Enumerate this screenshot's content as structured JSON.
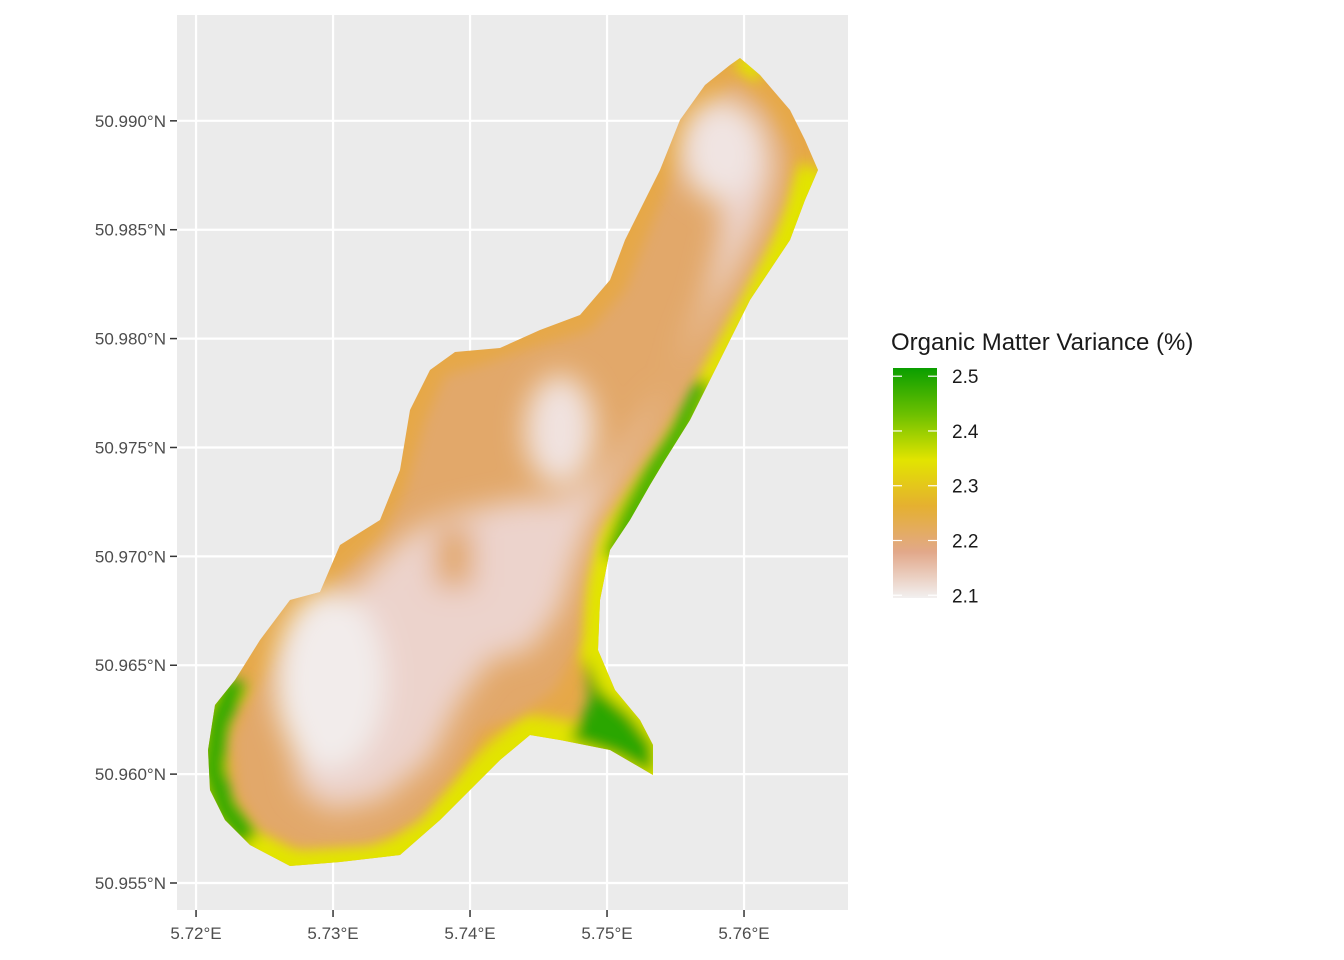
{
  "map": {
    "xlim": [
      5.71861,
      5.76759
    ],
    "ylim": [
      50.95376,
      50.99486
    ],
    "xticks": [
      {
        "value": 5.72,
        "label": "5.72°E"
      },
      {
        "value": 5.73,
        "label": "5.73°E"
      },
      {
        "value": 5.74,
        "label": "5.74°E"
      },
      {
        "value": 5.75,
        "label": "5.75°E"
      },
      {
        "value": 5.76,
        "label": "5.76°E"
      }
    ],
    "yticks": [
      {
        "value": 50.955,
        "label": "50.955°N"
      },
      {
        "value": 50.96,
        "label": "50.960°N"
      },
      {
        "value": 50.965,
        "label": "50.965°N"
      },
      {
        "value": 50.97,
        "label": "50.970°N"
      },
      {
        "value": 50.975,
        "label": "50.975°N"
      },
      {
        "value": 50.98,
        "label": "50.980°N"
      },
      {
        "value": 50.985,
        "label": "50.985°N"
      },
      {
        "value": 50.99,
        "label": "50.990°N"
      }
    ],
    "grid": true,
    "legend": {
      "title": "Organic Matter Variance (%)",
      "limits": [
        2.095,
        2.515
      ],
      "ticks": [
        2.1,
        2.2,
        2.3,
        2.4,
        2.5
      ],
      "colors": [
        "#f2f0f0",
        "#e2a88a",
        "#e5b030",
        "#e2e400",
        "#6cc000",
        "#0a9e00"
      ]
    }
  }
}
